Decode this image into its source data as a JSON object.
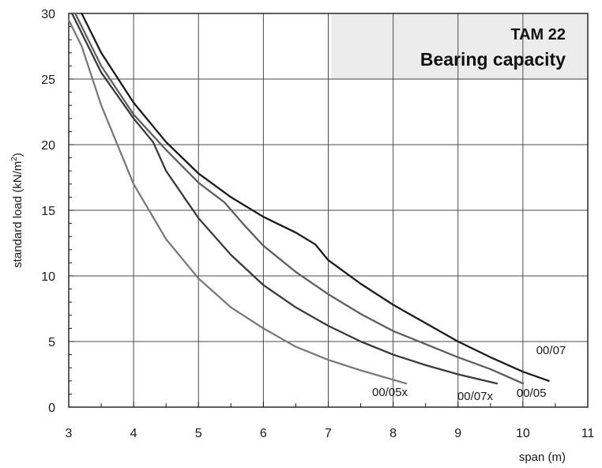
{
  "chart_data": {
    "type": "line",
    "title": "TAM 22",
    "subtitle": "Bearing capacity",
    "xlabel": "span (m)",
    "ylabel_main": "standard load (kN/m",
    "ylabel_sup": "2",
    "ylabel_close": ")",
    "xlim": [
      3,
      11
    ],
    "ylim": [
      0,
      30
    ],
    "xticks": [
      "3",
      "4",
      "5",
      "6",
      "7",
      "8",
      "9",
      "10",
      "11"
    ],
    "yticks": [
      "0",
      "5",
      "10",
      "15",
      "20",
      "25",
      "30"
    ],
    "grid": true,
    "colors": {
      "grid": "#4a4a4a",
      "title_box": "#ececec",
      "dark": "#1a1a1a",
      "mid": "#3a3a3a",
      "gray": "#5e5e5e",
      "light": "#7a7a7a"
    },
    "series": [
      {
        "name": "00/07",
        "color": "#1a1a1a",
        "x": [
          3.2,
          3.5,
          4.0,
          4.5,
          5.0,
          5.5,
          6.0,
          6.5,
          6.8,
          7.0,
          7.5,
          8.0,
          8.5,
          9.0,
          9.5,
          10.0,
          10.4
        ],
        "y": [
          30,
          27.0,
          23.2,
          20.2,
          17.8,
          16.0,
          14.5,
          13.3,
          12.4,
          11.2,
          9.4,
          7.8,
          6.4,
          5.0,
          3.8,
          2.7,
          2.0
        ]
      },
      {
        "name": "00/05",
        "color": "#5e5e5e",
        "x": [
          3.1,
          3.5,
          4.0,
          4.5,
          5.0,
          5.4,
          5.7,
          6.0,
          6.5,
          7.0,
          7.5,
          8.0,
          8.5,
          9.0,
          9.5,
          10.0
        ],
        "y": [
          30,
          26.0,
          22.3,
          19.6,
          17.1,
          15.6,
          13.9,
          12.3,
          10.3,
          8.6,
          7.1,
          5.8,
          4.8,
          3.8,
          2.9,
          1.8
        ]
      },
      {
        "name": "00/07x",
        "color": "#3a3a3a",
        "x": [
          3.05,
          3.5,
          4.0,
          4.3,
          4.5,
          5.0,
          5.5,
          6.0,
          6.5,
          7.0,
          7.5,
          8.0,
          8.5,
          9.0,
          9.6
        ],
        "y": [
          30,
          25.5,
          22.0,
          20.2,
          18.0,
          14.4,
          11.6,
          9.3,
          7.6,
          6.2,
          5.0,
          4.0,
          3.2,
          2.5,
          1.8
        ]
      },
      {
        "name": "00/05x",
        "color": "#7a7a7a",
        "x": [
          3.0,
          3.2,
          3.5,
          4.0,
          4.5,
          5.0,
          5.5,
          6.0,
          6.5,
          7.0,
          7.5,
          8.2
        ],
        "y": [
          29.5,
          27.5,
          23.0,
          17.0,
          12.8,
          9.8,
          7.6,
          6.0,
          4.6,
          3.6,
          2.8,
          1.8
        ]
      }
    ]
  }
}
